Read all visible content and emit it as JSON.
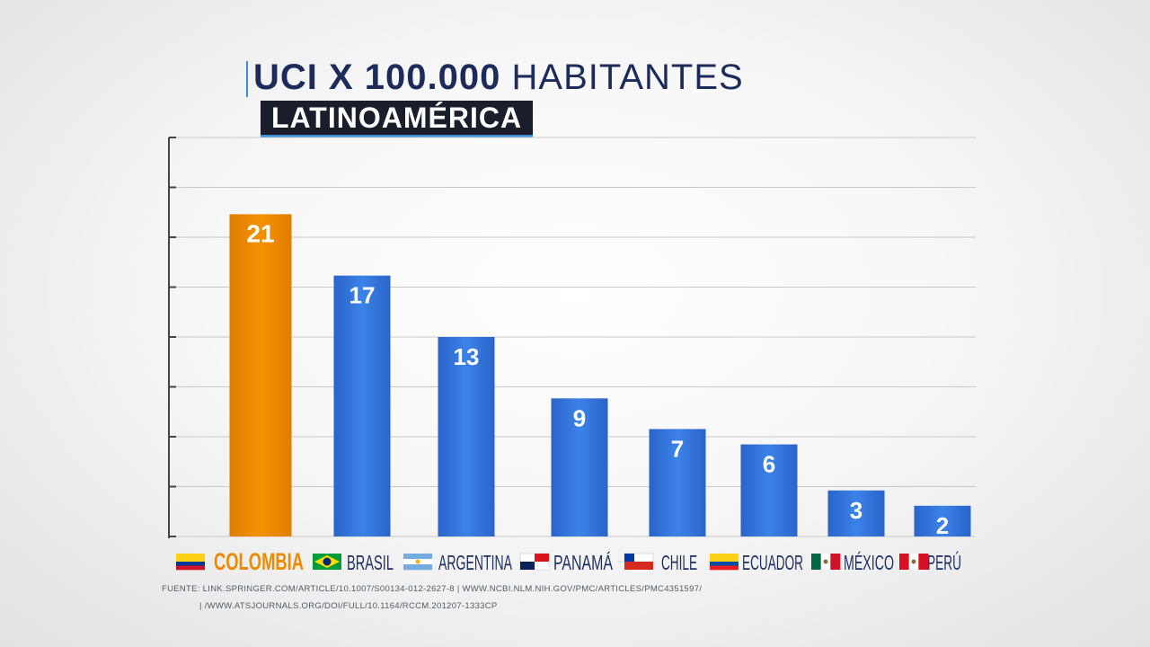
{
  "header": {
    "title_bold": "UCI X 100.000",
    "title_rest": "HABITANTES",
    "subtitle": "LATINOAMÉRICA"
  },
  "chart_data": {
    "type": "bar",
    "categories": [
      "COLOMBIA",
      "BRASIL",
      "ARGENTINA",
      "PANAMÁ",
      "CHILE",
      "ECUADOR",
      "MÉXICO",
      "PERÚ"
    ],
    "values": [
      21,
      17,
      13,
      9,
      7,
      6,
      3,
      2
    ],
    "ylim": [
      0,
      26
    ],
    "grid": true,
    "highlight_index": 0,
    "colors": {
      "highlight": "#ef8a00",
      "bar": "#2f73d8",
      "axis_text": "#1e2f63"
    }
  },
  "source": {
    "line1": "FUENTE: LINK.SPRINGER.COM/ARTICLE/10.1007/S00134-012-2627-8  |  WWW.NCBI.NLM.NIH.GOV/PMC/ARTICLES/PMC4351597/",
    "line2": "| /WWW.ATSJOURNALS.ORG/DOI/FULL/10.1164/RCCM.201207-1333CP"
  }
}
